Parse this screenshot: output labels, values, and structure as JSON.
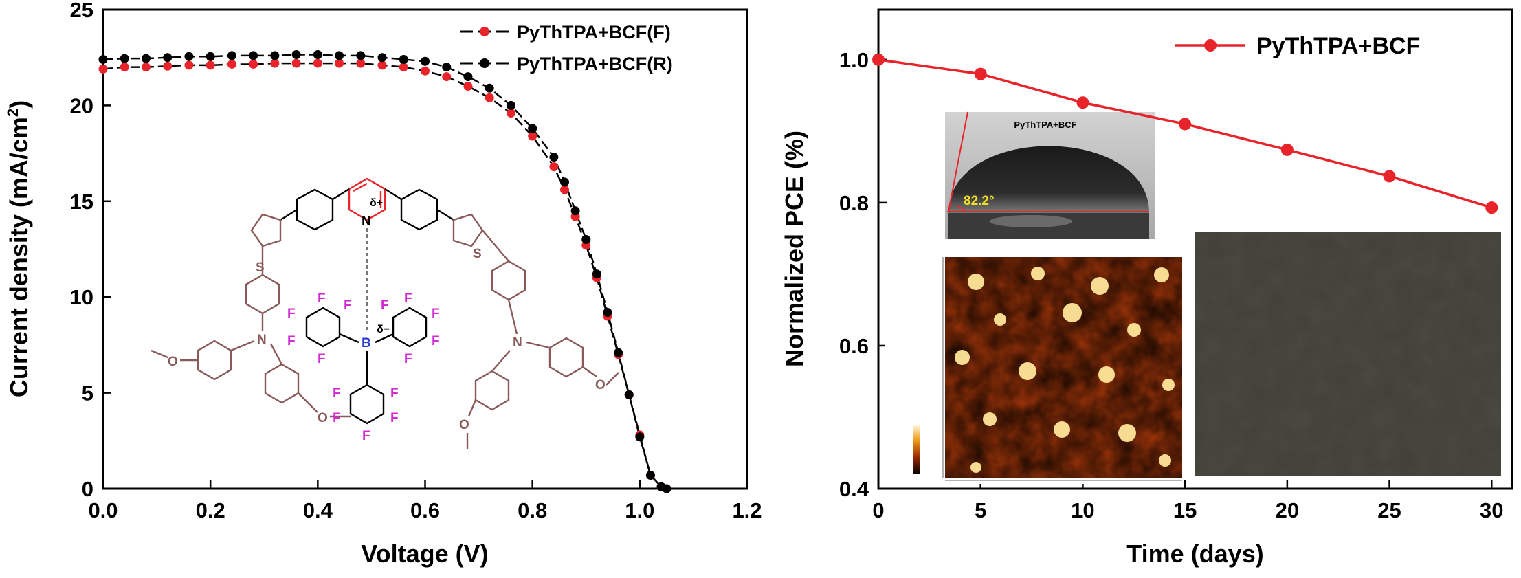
{
  "chart_data": [
    {
      "type": "scatter",
      "xlabel": "Voltage (V)",
      "ylabel": "Current density (mA/cm",
      "ylabel_sup": "2",
      "ylabel_close": ")",
      "xlim": [
        0.0,
        1.2
      ],
      "ylim": [
        0,
        25
      ],
      "x_ticks": [
        "0.0",
        "0.2",
        "0.4",
        "0.6",
        "0.8",
        "1.0",
        "1.2"
      ],
      "y_ticks": [
        "0",
        "5",
        "10",
        "15",
        "20",
        "25"
      ],
      "legend_position": "top-right",
      "series": [
        {
          "name": "PyThTPA+BCF(F)",
          "color": "#e8232a",
          "x": [
            0.0,
            0.04,
            0.08,
            0.12,
            0.16,
            0.2,
            0.24,
            0.28,
            0.32,
            0.36,
            0.4,
            0.44,
            0.48,
            0.52,
            0.56,
            0.6,
            0.64,
            0.68,
            0.72,
            0.76,
            0.8,
            0.84,
            0.86,
            0.88,
            0.9,
            0.92,
            0.94,
            0.96,
            0.98,
            1.0,
            1.02,
            1.04,
            1.05
          ],
          "y": [
            21.9,
            22.0,
            22.0,
            22.05,
            22.1,
            22.1,
            22.15,
            22.15,
            22.2,
            22.2,
            22.2,
            22.2,
            22.2,
            22.1,
            22.0,
            21.8,
            21.5,
            21.0,
            20.4,
            19.6,
            18.4,
            16.8,
            15.6,
            14.2,
            12.7,
            11.0,
            9.0,
            7.0,
            4.9,
            2.8,
            0.7,
            0.1,
            0.0
          ]
        },
        {
          "name": "PyThTPA+BCF(R)",
          "color": "#000000",
          "x": [
            0.0,
            0.04,
            0.08,
            0.12,
            0.16,
            0.2,
            0.24,
            0.28,
            0.32,
            0.36,
            0.4,
            0.44,
            0.48,
            0.52,
            0.56,
            0.6,
            0.64,
            0.68,
            0.72,
            0.76,
            0.8,
            0.84,
            0.86,
            0.88,
            0.9,
            0.92,
            0.94,
            0.96,
            0.98,
            1.0,
            1.02,
            1.04,
            1.05
          ],
          "y": [
            22.4,
            22.45,
            22.45,
            22.5,
            22.55,
            22.55,
            22.6,
            22.6,
            22.6,
            22.65,
            22.65,
            22.6,
            22.6,
            22.5,
            22.4,
            22.3,
            22.0,
            21.5,
            20.9,
            20.0,
            18.8,
            17.3,
            16.0,
            14.5,
            13.0,
            11.2,
            9.2,
            7.1,
            4.9,
            2.7,
            0.7,
            0.1,
            0.0
          ]
        }
      ]
    },
    {
      "type": "line",
      "xlabel": "Time (days)",
      "ylabel": "Normalized PCE (%)",
      "xlim": [
        0,
        31
      ],
      "ylim": [
        0.4,
        1.07
      ],
      "x_ticks": [
        "0",
        "5",
        "10",
        "15",
        "20",
        "25",
        "30"
      ],
      "y_ticks": [
        "0.4",
        "0.6",
        "0.8",
        "1.0"
      ],
      "legend_position": "top-right",
      "series": [
        {
          "name": "PyThTPA+BCF",
          "color": "#e8232a",
          "x": [
            0,
            5,
            10,
            15,
            20,
            25,
            30
          ],
          "y": [
            1.0,
            0.98,
            0.94,
            0.91,
            0.874,
            0.837,
            0.793
          ]
        }
      ]
    }
  ],
  "inset_molecule": {
    "delta_plus": "δ+",
    "delta_minus": "δ−",
    "atom_N": "N",
    "atom_S": "S",
    "atom_B": "B",
    "atom_F": "F",
    "atom_O": "O",
    "colors": {
      "pyridine": "#e8232a",
      "backbone": "#000000",
      "triphenylamine": "#8a5a5a",
      "fluorine": "#d42ad4",
      "boron": "#2a3ad4"
    }
  },
  "inset_contact_angle": {
    "label": "PyThTPA+BCF",
    "angle": "82.2°"
  },
  "inset_afm": {
    "colormap": [
      "#2a0a00",
      "#7a1e00",
      "#c44a00",
      "#f08a10",
      "#ffd060",
      "#fff8e0"
    ]
  },
  "inset_film": {
    "color": "#4a4a42"
  }
}
